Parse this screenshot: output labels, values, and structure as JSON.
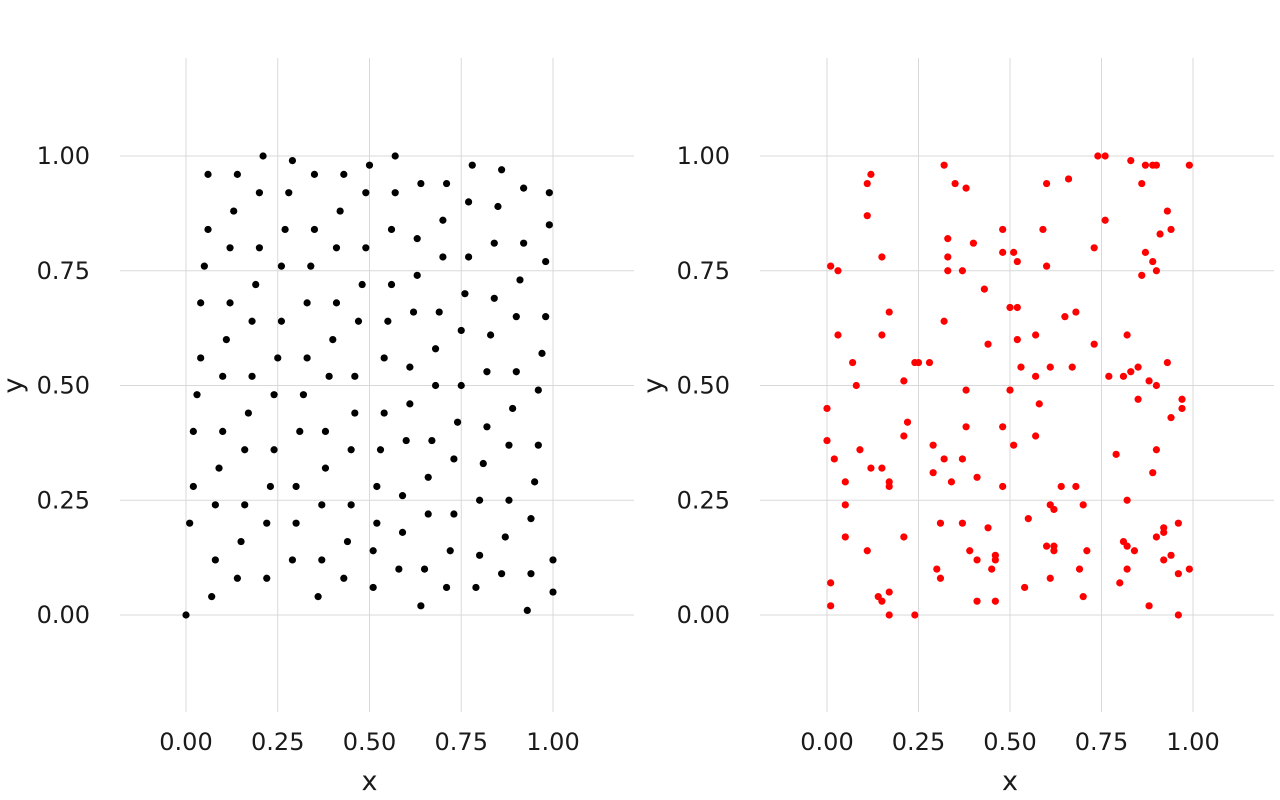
{
  "chart_data": [
    {
      "type": "scatter",
      "panel": "left",
      "xlabel": "x",
      "ylabel": "y",
      "xlim": [
        -0.22,
        1.22
      ],
      "ylim": [
        -0.22,
        1.22
      ],
      "xticks": [
        "0.00",
        "0.25",
        "0.50",
        "0.75",
        "1.00"
      ],
      "yticks": [
        "0.00",
        "0.25",
        "0.50",
        "0.75",
        "1.00"
      ],
      "grid": true,
      "point_color": "#000000",
      "points": [
        [
          0.0,
          0.0
        ],
        [
          0.01,
          0.2
        ],
        [
          0.02,
          0.28
        ],
        [
          0.02,
          0.4
        ],
        [
          0.03,
          0.48
        ],
        [
          0.04,
          0.56
        ],
        [
          0.04,
          0.68
        ],
        [
          0.05,
          0.76
        ],
        [
          0.06,
          0.84
        ],
        [
          0.06,
          0.96
        ],
        [
          0.07,
          0.04
        ],
        [
          0.08,
          0.12
        ],
        [
          0.08,
          0.24
        ],
        [
          0.09,
          0.32
        ],
        [
          0.1,
          0.4
        ],
        [
          0.1,
          0.52
        ],
        [
          0.11,
          0.6
        ],
        [
          0.12,
          0.68
        ],
        [
          0.12,
          0.8
        ],
        [
          0.13,
          0.88
        ],
        [
          0.14,
          0.96
        ],
        [
          0.14,
          0.08
        ],
        [
          0.15,
          0.16
        ],
        [
          0.16,
          0.24
        ],
        [
          0.16,
          0.36
        ],
        [
          0.17,
          0.44
        ],
        [
          0.18,
          0.52
        ],
        [
          0.18,
          0.64
        ],
        [
          0.19,
          0.72
        ],
        [
          0.2,
          0.8
        ],
        [
          0.2,
          0.92
        ],
        [
          0.21,
          1.0
        ],
        [
          0.22,
          0.08
        ],
        [
          0.22,
          0.2
        ],
        [
          0.23,
          0.28
        ],
        [
          0.24,
          0.36
        ],
        [
          0.24,
          0.48
        ],
        [
          0.25,
          0.56
        ],
        [
          0.26,
          0.64
        ],
        [
          0.26,
          0.76
        ],
        [
          0.27,
          0.84
        ],
        [
          0.28,
          0.92
        ],
        [
          0.29,
          0.99
        ],
        [
          0.29,
          0.12
        ],
        [
          0.3,
          0.2
        ],
        [
          0.3,
          0.28
        ],
        [
          0.31,
          0.4
        ],
        [
          0.32,
          0.48
        ],
        [
          0.33,
          0.56
        ],
        [
          0.33,
          0.68
        ],
        [
          0.34,
          0.76
        ],
        [
          0.35,
          0.84
        ],
        [
          0.35,
          0.96
        ],
        [
          0.36,
          0.04
        ],
        [
          0.37,
          0.12
        ],
        [
          0.37,
          0.24
        ],
        [
          0.38,
          0.32
        ],
        [
          0.38,
          0.4
        ],
        [
          0.39,
          0.52
        ],
        [
          0.4,
          0.6
        ],
        [
          0.41,
          0.68
        ],
        [
          0.41,
          0.8
        ],
        [
          0.42,
          0.88
        ],
        [
          0.43,
          0.96
        ],
        [
          0.43,
          0.08
        ],
        [
          0.44,
          0.16
        ],
        [
          0.45,
          0.24
        ],
        [
          0.45,
          0.36
        ],
        [
          0.46,
          0.44
        ],
        [
          0.46,
          0.52
        ],
        [
          0.47,
          0.64
        ],
        [
          0.48,
          0.72
        ],
        [
          0.49,
          0.8
        ],
        [
          0.49,
          0.92
        ],
        [
          0.5,
          0.98
        ],
        [
          0.51,
          0.06
        ],
        [
          0.51,
          0.14
        ],
        [
          0.52,
          0.2
        ],
        [
          0.52,
          0.28
        ],
        [
          0.53,
          0.36
        ],
        [
          0.54,
          0.44
        ],
        [
          0.54,
          0.56
        ],
        [
          0.55,
          0.64
        ],
        [
          0.56,
          0.72
        ],
        [
          0.56,
          0.84
        ],
        [
          0.57,
          0.92
        ],
        [
          0.57,
          1.0
        ],
        [
          0.58,
          0.1
        ],
        [
          0.59,
          0.18
        ],
        [
          0.59,
          0.26
        ],
        [
          0.6,
          0.38
        ],
        [
          0.61,
          0.46
        ],
        [
          0.61,
          0.54
        ],
        [
          0.62,
          0.66
        ],
        [
          0.63,
          0.74
        ],
        [
          0.63,
          0.82
        ],
        [
          0.64,
          0.94
        ],
        [
          0.64,
          0.02
        ],
        [
          0.65,
          0.1
        ],
        [
          0.66,
          0.22
        ],
        [
          0.66,
          0.3
        ],
        [
          0.67,
          0.38
        ],
        [
          0.68,
          0.5
        ],
        [
          0.68,
          0.58
        ],
        [
          0.69,
          0.66
        ],
        [
          0.7,
          0.78
        ],
        [
          0.7,
          0.86
        ],
        [
          0.71,
          0.94
        ],
        [
          0.71,
          0.06
        ],
        [
          0.72,
          0.14
        ],
        [
          0.73,
          0.22
        ],
        [
          0.73,
          0.34
        ],
        [
          0.74,
          0.42
        ],
        [
          0.75,
          0.5
        ],
        [
          0.75,
          0.62
        ],
        [
          0.76,
          0.7
        ],
        [
          0.77,
          0.78
        ],
        [
          0.77,
          0.9
        ],
        [
          0.78,
          0.98
        ],
        [
          0.79,
          0.06
        ],
        [
          0.8,
          0.13
        ],
        [
          0.8,
          0.25
        ],
        [
          0.81,
          0.33
        ],
        [
          0.82,
          0.41
        ],
        [
          0.82,
          0.53
        ],
        [
          0.83,
          0.61
        ],
        [
          0.84,
          0.69
        ],
        [
          0.84,
          0.81
        ],
        [
          0.85,
          0.89
        ],
        [
          0.86,
          0.97
        ],
        [
          0.86,
          0.09
        ],
        [
          0.87,
          0.17
        ],
        [
          0.88,
          0.25
        ],
        [
          0.88,
          0.37
        ],
        [
          0.89,
          0.45
        ],
        [
          0.9,
          0.53
        ],
        [
          0.9,
          0.65
        ],
        [
          0.91,
          0.73
        ],
        [
          0.92,
          0.81
        ],
        [
          0.92,
          0.93
        ],
        [
          0.93,
          0.01
        ],
        [
          0.94,
          0.09
        ],
        [
          0.94,
          0.21
        ],
        [
          0.95,
          0.29
        ],
        [
          0.96,
          0.37
        ],
        [
          0.96,
          0.49
        ],
        [
          0.97,
          0.57
        ],
        [
          0.98,
          0.65
        ],
        [
          0.98,
          0.77
        ],
        [
          0.99,
          0.85
        ],
        [
          0.99,
          0.92
        ],
        [
          1.0,
          0.05
        ],
        [
          1.0,
          0.12
        ]
      ]
    },
    {
      "type": "scatter",
      "panel": "right",
      "xlabel": "x",
      "ylabel": "y",
      "xlim": [
        -0.22,
        1.22
      ],
      "ylim": [
        -0.22,
        1.22
      ],
      "xticks": [
        "0.00",
        "0.25",
        "0.50",
        "0.75",
        "1.00"
      ],
      "yticks": [
        "0.00",
        "0.25",
        "0.50",
        "0.75",
        "1.00"
      ],
      "grid": true,
      "point_color": "#ff0000",
      "points": [
        [
          0.0,
          0.45
        ],
        [
          0.0,
          0.38
        ],
        [
          0.01,
          0.76
        ],
        [
          0.01,
          0.07
        ],
        [
          0.01,
          0.02
        ],
        [
          0.02,
          0.34
        ],
        [
          0.03,
          0.75
        ],
        [
          0.03,
          0.61
        ],
        [
          0.05,
          0.29
        ],
        [
          0.05,
          0.24
        ],
        [
          0.05,
          0.17
        ],
        [
          0.07,
          0.55
        ],
        [
          0.08,
          0.5
        ],
        [
          0.09,
          0.36
        ],
        [
          0.11,
          0.94
        ],
        [
          0.11,
          0.87
        ],
        [
          0.11,
          0.14
        ],
        [
          0.12,
          0.96
        ],
        [
          0.12,
          0.32
        ],
        [
          0.14,
          0.04
        ],
        [
          0.15,
          0.78
        ],
        [
          0.15,
          0.61
        ],
        [
          0.15,
          0.32
        ],
        [
          0.15,
          0.03
        ],
        [
          0.17,
          0.66
        ],
        [
          0.17,
          0.29
        ],
        [
          0.17,
          0.28
        ],
        [
          0.17,
          0.05
        ],
        [
          0.17,
          0.0
        ],
        [
          0.21,
          0.51
        ],
        [
          0.21,
          0.39
        ],
        [
          0.21,
          0.17
        ],
        [
          0.22,
          0.42
        ],
        [
          0.24,
          0.55
        ],
        [
          0.25,
          0.55
        ],
        [
          0.24,
          0.0
        ],
        [
          0.28,
          0.55
        ],
        [
          0.29,
          0.37
        ],
        [
          0.29,
          0.31
        ],
        [
          0.3,
          0.1
        ],
        [
          0.31,
          0.08
        ],
        [
          0.31,
          0.2
        ],
        [
          0.32,
          0.98
        ],
        [
          0.32,
          0.64
        ],
        [
          0.32,
          0.34
        ],
        [
          0.33,
          0.82
        ],
        [
          0.33,
          0.78
        ],
        [
          0.33,
          0.75
        ],
        [
          0.34,
          0.29
        ],
        [
          0.35,
          0.94
        ],
        [
          0.37,
          0.75
        ],
        [
          0.37,
          0.34
        ],
        [
          0.37,
          0.2
        ],
        [
          0.38,
          0.93
        ],
        [
          0.38,
          0.49
        ],
        [
          0.38,
          0.41
        ],
        [
          0.39,
          0.14
        ],
        [
          0.4,
          0.81
        ],
        [
          0.41,
          0.3
        ],
        [
          0.41,
          0.12
        ],
        [
          0.41,
          0.03
        ],
        [
          0.43,
          0.71
        ],
        [
          0.44,
          0.59
        ],
        [
          0.44,
          0.19
        ],
        [
          0.45,
          0.1
        ],
        [
          0.46,
          0.13
        ],
        [
          0.46,
          0.12
        ],
        [
          0.46,
          0.03
        ],
        [
          0.48,
          0.84
        ],
        [
          0.48,
          0.79
        ],
        [
          0.48,
          0.41
        ],
        [
          0.48,
          0.28
        ],
        [
          0.5,
          0.67
        ],
        [
          0.5,
          0.49
        ],
        [
          0.51,
          0.79
        ],
        [
          0.51,
          0.37
        ],
        [
          0.52,
          0.77
        ],
        [
          0.52,
          0.67
        ],
        [
          0.52,
          0.6
        ],
        [
          0.53,
          0.54
        ],
        [
          0.54,
          0.06
        ],
        [
          0.55,
          0.21
        ],
        [
          0.57,
          0.61
        ],
        [
          0.57,
          0.52
        ],
        [
          0.57,
          0.39
        ],
        [
          0.58,
          0.46
        ],
        [
          0.59,
          0.84
        ],
        [
          0.6,
          0.94
        ],
        [
          0.6,
          0.76
        ],
        [
          0.6,
          0.15
        ],
        [
          0.61,
          0.54
        ],
        [
          0.61,
          0.24
        ],
        [
          0.61,
          0.08
        ],
        [
          0.62,
          0.23
        ],
        [
          0.62,
          0.15
        ],
        [
          0.62,
          0.14
        ],
        [
          0.64,
          0.28
        ],
        [
          0.65,
          0.65
        ],
        [
          0.66,
          0.95
        ],
        [
          0.67,
          0.54
        ],
        [
          0.68,
          0.66
        ],
        [
          0.68,
          0.28
        ],
        [
          0.69,
          0.1
        ],
        [
          0.7,
          0.24
        ],
        [
          0.7,
          0.04
        ],
        [
          0.71,
          0.14
        ],
        [
          0.73,
          0.8
        ],
        [
          0.73,
          0.59
        ],
        [
          0.74,
          1.0
        ],
        [
          0.76,
          1.0
        ],
        [
          0.76,
          0.86
        ],
        [
          0.77,
          0.52
        ],
        [
          0.79,
          0.35
        ],
        [
          0.8,
          0.07
        ],
        [
          0.81,
          0.52
        ],
        [
          0.81,
          0.16
        ],
        [
          0.82,
          0.61
        ],
        [
          0.82,
          0.25
        ],
        [
          0.82,
          0.15
        ],
        [
          0.82,
          0.1
        ],
        [
          0.83,
          0.99
        ],
        [
          0.83,
          0.53
        ],
        [
          0.84,
          0.14
        ],
        [
          0.85,
          0.54
        ],
        [
          0.85,
          0.47
        ],
        [
          0.86,
          0.94
        ],
        [
          0.86,
          0.74
        ],
        [
          0.87,
          0.98
        ],
        [
          0.87,
          0.79
        ],
        [
          0.88,
          0.51
        ],
        [
          0.88,
          0.02
        ],
        [
          0.89,
          0.98
        ],
        [
          0.89,
          0.77
        ],
        [
          0.89,
          0.31
        ],
        [
          0.9,
          0.98
        ],
        [
          0.9,
          0.75
        ],
        [
          0.9,
          0.5
        ],
        [
          0.9,
          0.36
        ],
        [
          0.9,
          0.17
        ],
        [
          0.91,
          0.83
        ],
        [
          0.92,
          0.19
        ],
        [
          0.92,
          0.18
        ],
        [
          0.92,
          0.12
        ],
        [
          0.93,
          0.88
        ],
        [
          0.93,
          0.55
        ],
        [
          0.94,
          0.84
        ],
        [
          0.94,
          0.43
        ],
        [
          0.94,
          0.13
        ],
        [
          0.96,
          0.2
        ],
        [
          0.96,
          0.09
        ],
        [
          0.96,
          0.0
        ],
        [
          0.97,
          0.47
        ],
        [
          0.97,
          0.45
        ],
        [
          0.99,
          0.98
        ],
        [
          0.99,
          0.1
        ]
      ]
    }
  ]
}
